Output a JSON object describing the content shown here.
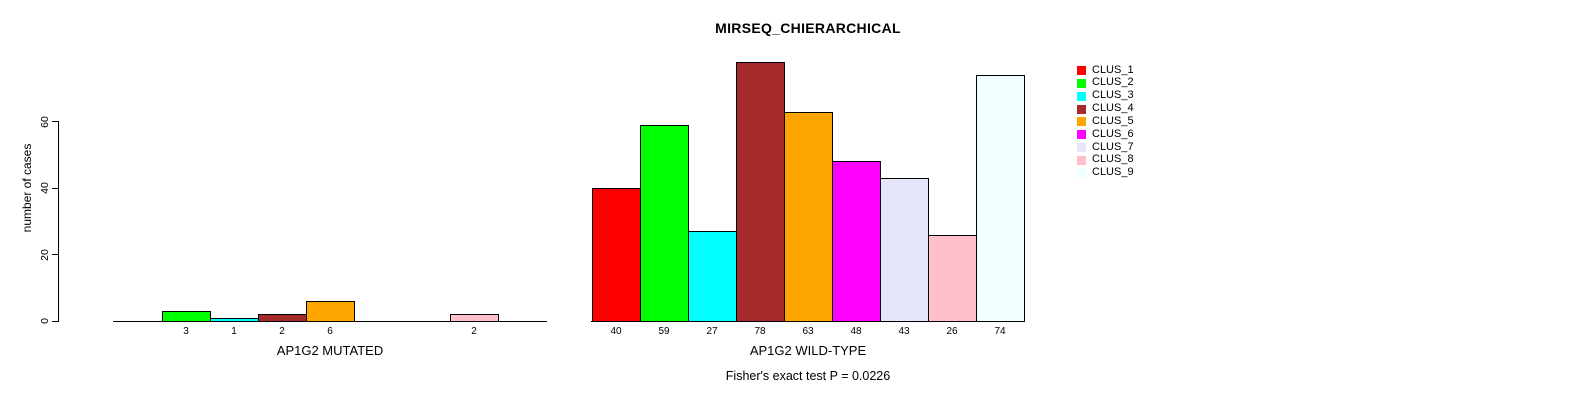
{
  "title": "MIRSEQ_CHIERARCHICAL",
  "subtitle": "Fisher's exact test P = 0.0226",
  "y_axis": {
    "label": "number of cases",
    "ticks": [
      0,
      20,
      40,
      60
    ]
  },
  "legend": {
    "position": "right",
    "items": [
      {
        "label": "CLUS_1",
        "color": "#FF0000"
      },
      {
        "label": "CLUS_2",
        "color": "#00FF00"
      },
      {
        "label": "CLUS_3",
        "color": "#00FFFF"
      },
      {
        "label": "CLUS_4",
        "color": "#A52A2A"
      },
      {
        "label": "CLUS_5",
        "color": "#FFA500"
      },
      {
        "label": "CLUS_6",
        "color": "#FF00FF"
      },
      {
        "label": "CLUS_7",
        "color": "#E6E6FA"
      },
      {
        "label": "CLUS_8",
        "color": "#FFC0CB"
      },
      {
        "label": "CLUS_9",
        "color": "#F0FFFF"
      }
    ]
  },
  "chart_data": {
    "type": "bar",
    "title": "MIRSEQ_CHIERARCHICAL",
    "ylabel": "number of cases",
    "ylim": [
      0,
      80
    ],
    "yticks": [
      0,
      20,
      40,
      60
    ],
    "grid": false,
    "legend_position": "right",
    "annotation": "Fisher's exact test P = 0.0226",
    "categories": [
      "CLUS_1",
      "CLUS_2",
      "CLUS_3",
      "CLUS_4",
      "CLUS_5",
      "CLUS_6",
      "CLUS_7",
      "CLUS_8",
      "CLUS_9"
    ],
    "colors": [
      "#FF0000",
      "#00FF00",
      "#00FFFF",
      "#A52A2A",
      "#FFA500",
      "#FF00FF",
      "#E6E6FA",
      "#FFC0CB",
      "#F0FFFF"
    ],
    "groups": [
      {
        "name": "AP1G2 MUTATED",
        "values": [
          0,
          3,
          1,
          2,
          6,
          0,
          0,
          2,
          0
        ]
      },
      {
        "name": "AP1G2 WILD-TYPE",
        "values": [
          40,
          59,
          27,
          78,
          63,
          48,
          43,
          26,
          74
        ]
      }
    ]
  }
}
